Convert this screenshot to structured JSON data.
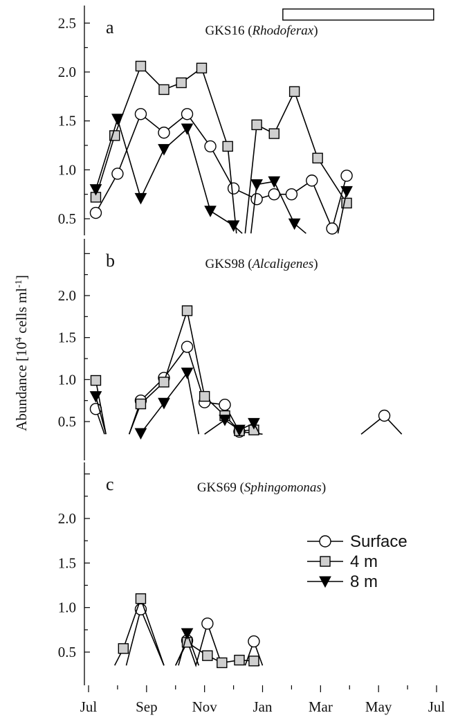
{
  "chart_data": {
    "type": "line",
    "ylabel_main": "Abundance [10",
    "ylabel_sup": "4",
    "ylabel_mid": " cells ml",
    "ylabel_sup2": "-1",
    "ylabel_end": "]",
    "x_tick_labels": [
      "Jul",
      "Sep",
      "Nov",
      "Jan",
      "Mar",
      "May",
      "Jul"
    ],
    "x_tick_positions": [
      0,
      2,
      4,
      6,
      8,
      10,
      12
    ],
    "xlim": [
      0,
      12
    ],
    "legend": {
      "placement": "inside panel c, right",
      "entries": [
        {
          "label": "Surface",
          "marker": "circle"
        },
        {
          "label": "4 m",
          "marker": "square"
        },
        {
          "label": "8 m",
          "marker": "triangle-down"
        }
      ]
    },
    "colors": {
      "line": "#000000",
      "square_fill": "#cfcfcf",
      "circle_fill": "#ffffff",
      "triangle_fill": "#000000"
    },
    "panels": [
      {
        "letter": "a",
        "title_plain": "GKS16 (",
        "title_italic": "Rhodoferax",
        "title_close": ")",
        "ylim": [
          0.35,
          2.5
        ],
        "y_ticks": [
          0.5,
          1.0,
          1.5,
          2.0,
          2.5
        ],
        "y_tick_labels": [
          "0.5",
          "1.0",
          "1.5",
          "2.0",
          "2.5"
        ],
        "bar": {
          "x0": 6.7,
          "x1": 11.9
        },
        "series": [
          {
            "name": "Surface",
            "marker": "circle",
            "segments": [
              [
                [
                  0.25,
                  0.56
                ],
                [
                  1.0,
                  0.96
                ],
                [
                  1.8,
                  1.57
                ],
                [
                  2.6,
                  1.38
                ],
                [
                  3.4,
                  1.57
                ],
                [
                  4.2,
                  1.24
                ],
                [
                  5.0,
                  0.81
                ],
                [
                  5.8,
                  0.7
                ],
                [
                  6.4,
                  0.75
                ],
                [
                  7.0,
                  0.75
                ],
                [
                  7.7,
                  0.89
                ],
                [
                  8.4,
                  0.4
                ],
                [
                  8.9,
                  0.94
                ]
              ]
            ]
          },
          {
            "name": "4 m",
            "marker": "square",
            "segments": [
              [
                [
                  0.25,
                  0.72
                ],
                [
                  0.9,
                  1.35
                ],
                [
                  1.8,
                  2.06
                ],
                [
                  2.6,
                  1.82
                ],
                [
                  3.2,
                  1.89
                ],
                [
                  3.9,
                  2.04
                ],
                [
                  4.8,
                  1.24
                ],
                [
                  5.1,
                  0.35
                ]
              ],
              [
                [
                  5.4,
                  0.35
                ],
                [
                  5.8,
                  1.46
                ],
                [
                  6.4,
                  1.37
                ],
                [
                  7.1,
                  1.8
                ],
                [
                  7.9,
                  1.12
                ],
                [
                  8.9,
                  0.66
                ]
              ]
            ]
          },
          {
            "name": "8 m",
            "marker": "triangle",
            "segments": [
              [
                [
                  0.25,
                  0.8
                ],
                [
                  1.0,
                  1.52
                ],
                [
                  1.8,
                  0.71
                ],
                [
                  2.6,
                  1.21
                ],
                [
                  3.4,
                  1.42
                ],
                [
                  4.2,
                  0.58
                ],
                [
                  5.0,
                  0.43
                ],
                [
                  5.3,
                  0.35
                ]
              ],
              [
                [
                  5.6,
                  0.35
                ],
                [
                  5.8,
                  0.85
                ],
                [
                  6.4,
                  0.88
                ],
                [
                  7.1,
                  0.45
                ],
                [
                  7.5,
                  0.35
                ]
              ],
              [
                [
                  8.6,
                  0.35
                ],
                [
                  8.9,
                  0.78
                ]
              ]
            ]
          }
        ]
      },
      {
        "letter": "b",
        "title_plain": "GKS98 (",
        "title_italic": "Alcaligenes",
        "title_close": ")",
        "ylim": [
          0.35,
          2.5
        ],
        "y_ticks": [
          0.5,
          1.0,
          1.5,
          2.0
        ],
        "y_tick_labels": [
          "0.5",
          "1.0",
          "1.5",
          "2.0"
        ],
        "series": [
          {
            "name": "Surface",
            "marker": "circle",
            "segments": [
              [
                [
                  0.25,
                  0.65
                ],
                [
                  0.55,
                  0.35
                ]
              ],
              [
                [
                  1.4,
                  0.35
                ],
                [
                  1.8,
                  0.75
                ],
                [
                  2.6,
                  1.02
                ],
                [
                  3.4,
                  1.39
                ],
                [
                  4.0,
                  0.73
                ],
                [
                  4.7,
                  0.7
                ],
                [
                  5.2,
                  0.38
                ],
                [
                  6.0,
                  0.35
                ]
              ],
              [
                [
                  9.4,
                  0.35
                ],
                [
                  10.2,
                  0.57
                ],
                [
                  10.8,
                  0.35
                ]
              ]
            ]
          },
          {
            "name": "4 m",
            "marker": "square",
            "segments": [
              [
                [
                  0.25,
                  0.99
                ],
                [
                  0.6,
                  0.35
                ]
              ],
              [
                [
                  1.4,
                  0.35
                ],
                [
                  1.8,
                  0.71
                ],
                [
                  2.6,
                  0.97
                ],
                [
                  3.4,
                  1.82
                ],
                [
                  4.0,
                  0.8
                ],
                [
                  4.7,
                  0.57
                ],
                [
                  5.2,
                  0.39
                ],
                [
                  5.7,
                  0.4
                ],
                [
                  5.9,
                  0.35
                ]
              ]
            ]
          },
          {
            "name": "8 m",
            "marker": "triangle",
            "segments": [
              [
                [
                  0.25,
                  0.8
                ],
                [
                  0.6,
                  0.35
                ]
              ],
              [
                [
                  1.8,
                  0.36
                ],
                [
                  2.6,
                  0.72
                ],
                [
                  3.4,
                  1.08
                ],
                [
                  3.8,
                  0.35
                ]
              ],
              [
                [
                  4.0,
                  0.35
                ],
                [
                  4.7,
                  0.52
                ],
                [
                  5.2,
                  0.4
                ],
                [
                  5.7,
                  0.48
                ],
                [
                  5.9,
                  0.35
                ]
              ]
            ]
          }
        ]
      },
      {
        "letter": "c",
        "title_plain": "GKS69 (",
        "title_italic": "Sphingomonas",
        "title_close": ")",
        "ylim": [
          0.35,
          2.5
        ],
        "y_ticks": [
          0.5,
          1.0,
          1.5,
          2.0
        ],
        "y_tick_labels": [
          "0.5",
          "1.0",
          "1.5",
          "2.0"
        ],
        "series": [
          {
            "name": "Surface",
            "marker": "circle",
            "segments": [
              [
                [
                  1.3,
                  0.35
                ],
                [
                  1.8,
                  0.98
                ],
                [
                  2.6,
                  0.35
                ]
              ],
              [
                [
                  3.0,
                  0.35
                ],
                [
                  3.4,
                  0.63
                ],
                [
                  3.7,
                  0.35
                ],
                [
                  4.1,
                  0.82
                ],
                [
                  4.6,
                  0.35
                ]
              ],
              [
                [
                  5.4,
                  0.35
                ],
                [
                  5.7,
                  0.62
                ],
                [
                  6.0,
                  0.35
                ]
              ]
            ]
          },
          {
            "name": "4 m",
            "marker": "square",
            "segments": [
              [
                [
                  0.9,
                  0.35
                ],
                [
                  1.2,
                  0.54
                ],
                [
                  1.8,
                  1.1
                ],
                [
                  2.6,
                  0.35
                ]
              ],
              [
                [
                  3.0,
                  0.35
                ],
                [
                  3.4,
                  0.61
                ],
                [
                  4.1,
                  0.46
                ],
                [
                  4.6,
                  0.38
                ],
                [
                  5.2,
                  0.41
                ],
                [
                  5.7,
                  0.4
                ],
                [
                  5.9,
                  0.35
                ]
              ]
            ]
          },
          {
            "name": "8 m",
            "marker": "triangle",
            "segments": [
              [
                [
                  3.1,
                  0.35
                ],
                [
                  3.4,
                  0.71
                ],
                [
                  3.8,
                  0.35
                ]
              ]
            ]
          }
        ]
      }
    ]
  }
}
